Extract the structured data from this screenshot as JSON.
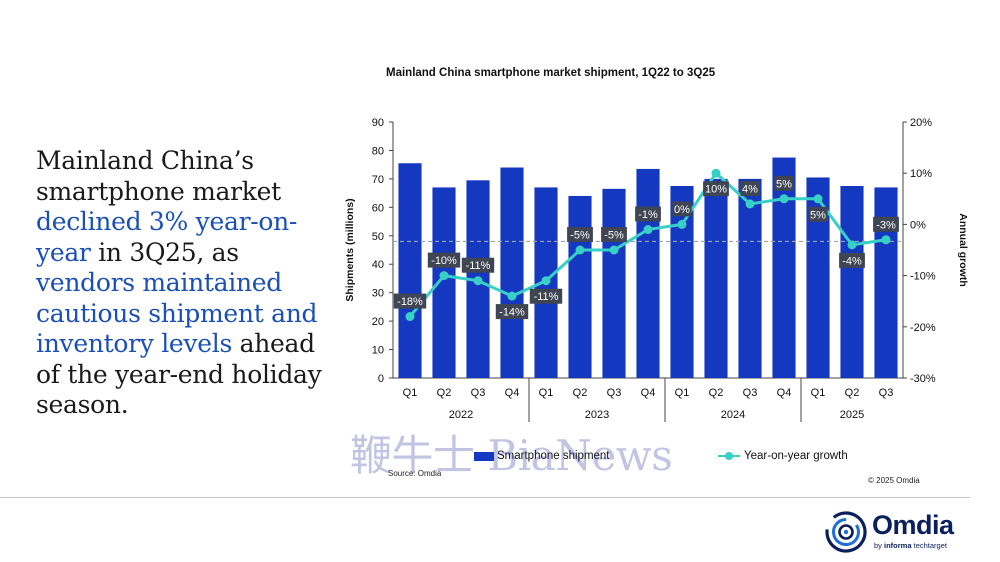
{
  "headline": {
    "parts": [
      {
        "text": "Mainland China’s smartphone market ",
        "highlight": false
      },
      {
        "text": "declined 3% year-on-year",
        "highlight": true
      },
      {
        "text": " in 3Q25, as ",
        "highlight": false
      },
      {
        "text": "vendors maintained cautious shipment and inventory levels",
        "highlight": true
      },
      {
        "text": " ahead of the year-end holiday season.",
        "highlight": false
      }
    ]
  },
  "chart_data": {
    "type": "bar",
    "title": "Mainland China smartphone market shipment, 1Q22 to 3Q25",
    "categories": [
      "Q1",
      "Q2",
      "Q3",
      "Q4",
      "Q1",
      "Q2",
      "Q3",
      "Q4",
      "Q1",
      "Q2",
      "Q3",
      "Q4",
      "Q1",
      "Q2",
      "Q3"
    ],
    "years": [
      {
        "label": "2022",
        "span": 4
      },
      {
        "label": "2023",
        "span": 4
      },
      {
        "label": "2024",
        "span": 4
      },
      {
        "label": "2025",
        "span": 3
      }
    ],
    "series": [
      {
        "name": "Smartphone shipment",
        "type": "bar",
        "axis": "left",
        "color": "#1438c0",
        "values": [
          75.5,
          67,
          69.5,
          74,
          67,
          64,
          66.5,
          73.5,
          67.5,
          70,
          70,
          77.5,
          70.5,
          67.5,
          67
        ]
      },
      {
        "name": "Year-on-year growth",
        "type": "line",
        "axis": "right",
        "color": "#38cfc6",
        "values": [
          -18,
          -10,
          -11,
          -14,
          -11,
          -5,
          -5,
          -1,
          0,
          10,
          4,
          5,
          5,
          -4,
          -3
        ],
        "labels": [
          "-18%",
          "-10%",
          "-11%",
          "-14%",
          "-11%",
          "-5%",
          "-5%",
          "-1%",
          "0%",
          "10%",
          "4%",
          "5%",
          "5%",
          "-4%",
          "-3%"
        ]
      }
    ],
    "ylabel": "Shipments (millions)",
    "ylim": [
      0,
      90
    ],
    "yticks": [
      "0",
      "10",
      "20",
      "30",
      "40",
      "50",
      "60",
      "70",
      "80",
      "90"
    ],
    "y2label": "Annual growth",
    "y2lim": [
      -30,
      20
    ],
    "y2ticks": [
      "-30%",
      "-20%",
      "-10%",
      "0%",
      "10%",
      "20%"
    ],
    "reference_line_y": 48,
    "grid": false,
    "legend_position": "bottom"
  },
  "source": "Source: Omdia",
  "copyright": "© 2025 Omdia",
  "watermark": "鞭牛士 BiaNews",
  "logo": {
    "name": "Omdia",
    "tag_prefix": "by ",
    "tag_brand": "informa",
    "tag_suffix": " techtarget"
  }
}
